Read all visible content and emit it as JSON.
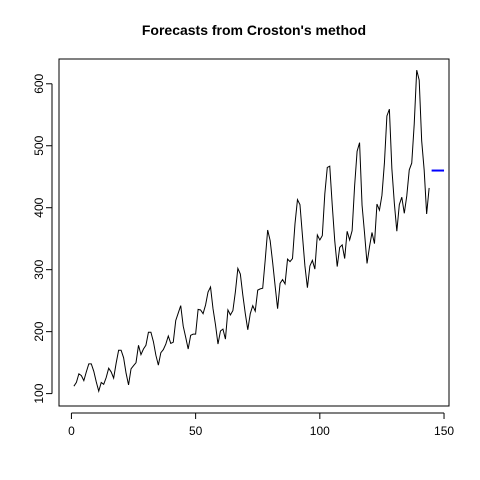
{
  "chart_data": {
    "type": "line",
    "title": "Forecasts from Croston's method",
    "xlabel": "",
    "ylabel": "",
    "xlim": [
      -5,
      152
    ],
    "ylim": [
      80,
      640
    ],
    "xticks": [
      0,
      50,
      100,
      150
    ],
    "yticks": [
      100,
      200,
      300,
      400,
      500,
      600
    ],
    "grid": false,
    "legend": "none",
    "colors": {
      "series": "#000000",
      "forecast": "#0000ff"
    },
    "series": [
      {
        "x": [
          1,
          2,
          3,
          4,
          5,
          6,
          7,
          8,
          9,
          10,
          11,
          12,
          13,
          14,
          15,
          16,
          17,
          18,
          19,
          20,
          21,
          22,
          23,
          24,
          25,
          26,
          27,
          28,
          29,
          30,
          31,
          32,
          33,
          34,
          35,
          36,
          37,
          38,
          39,
          40,
          41,
          42,
          43,
          44,
          45,
          46,
          47,
          48,
          49,
          50,
          51,
          52,
          53,
          54,
          55,
          56,
          57,
          58,
          59,
          60,
          61,
          62,
          63,
          64,
          65,
          66,
          67,
          68,
          69,
          70,
          71,
          72,
          73,
          74,
          75,
          76,
          77,
          78,
          79,
          80,
          81,
          82,
          83,
          84,
          85,
          86,
          87,
          88,
          89,
          90,
          91,
          92,
          93,
          94,
          95,
          96,
          97,
          98,
          99,
          100,
          101,
          102,
          103,
          104,
          105,
          106,
          107,
          108,
          109,
          110,
          111,
          112,
          113,
          114,
          115,
          116,
          117,
          118,
          119,
          120,
          121,
          122,
          123,
          124,
          125,
          126,
          127,
          128,
          129,
          130,
          131,
          132,
          133,
          134,
          135,
          136,
          137,
          138,
          139,
          140,
          141,
          142,
          143,
          144
        ],
        "values": [
          112,
          118,
          132,
          129,
          121,
          135,
          148,
          148,
          136,
          119,
          104,
          118,
          115,
          126,
          141,
          135,
          125,
          149,
          170,
          170,
          158,
          133,
          114,
          140,
          145,
          150,
          178,
          163,
          172,
          178,
          199,
          199,
          184,
          162,
          146,
          166,
          171,
          180,
          193,
          181,
          183,
          218,
          230,
          242,
          209,
          191,
          172,
          194,
          196,
          196,
          236,
          235,
          229,
          243,
          264,
          272,
          237,
          211,
          180,
          201,
          204,
          188,
          235,
          227,
          234,
          264,
          302,
          293,
          259,
          229,
          203,
          229,
          242,
          233,
          267,
          269,
          270,
          315,
          364,
          347,
          312,
          274,
          237,
          278,
          284,
          277,
          317,
          313,
          318,
          374,
          413,
          405,
          355,
          306,
          271,
          306,
          315,
          301,
          356,
          348,
          355,
          422,
          465,
          467,
          404,
          347,
          305,
          336,
          340,
          318,
          362,
          348,
          363,
          435,
          491,
          505,
          404,
          359,
          310,
          337,
          360,
          342,
          406,
          396,
          420,
          472,
          548,
          559,
          463,
          407,
          362,
          405,
          417,
          391,
          419,
          461,
          472,
          535,
          622,
          606,
          508,
          461,
          390,
          432
        ]
      },
      {
        "x": [
          145,
          146,
          147,
          148,
          149,
          150
        ],
        "values": [
          460,
          460,
          460,
          460,
          460,
          460
        ]
      }
    ]
  }
}
